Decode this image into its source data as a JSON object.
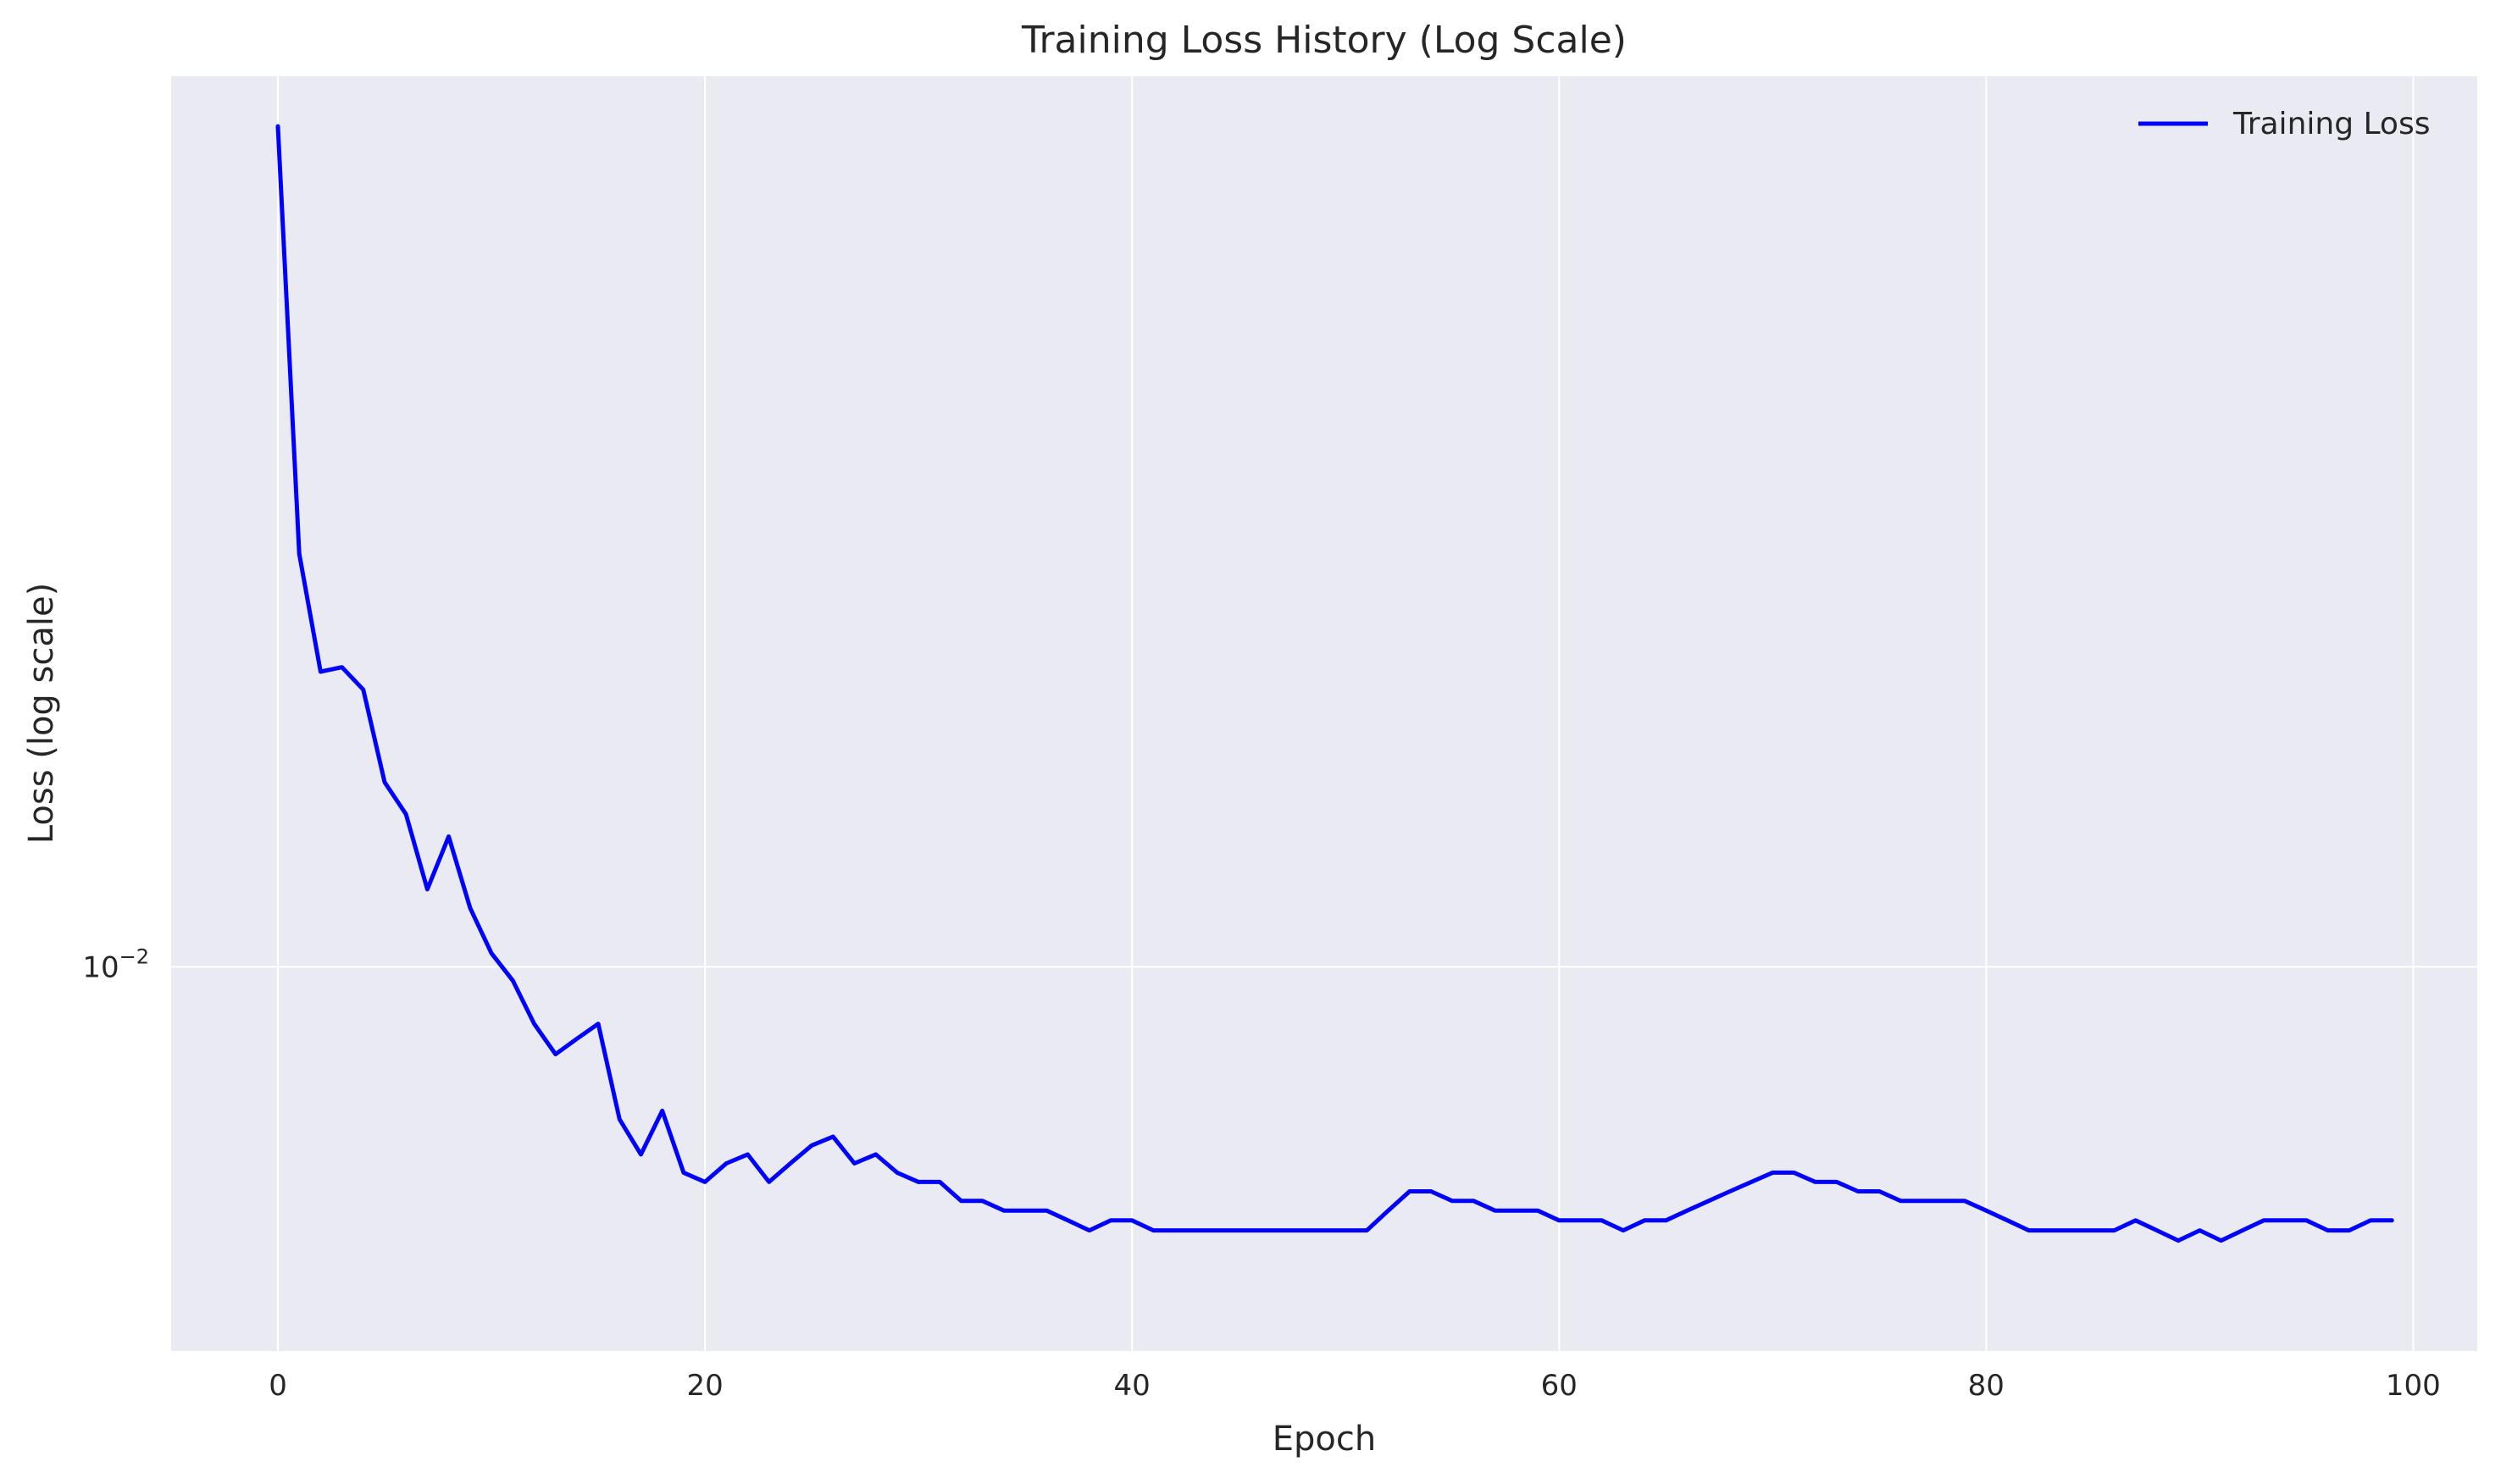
{
  "chart_data": {
    "type": "line",
    "title": "Training Loss History (Log Scale)",
    "xlabel": "Epoch",
    "ylabel": "Loss (log scale)",
    "yscale": "log",
    "xlim": [
      -5,
      103
    ],
    "ylim": [
      0.0057,
      0.0368
    ],
    "xticks": [
      0,
      20,
      40,
      60,
      80,
      100
    ],
    "yticks": [
      {
        "value": 0.01,
        "base": "10",
        "exponent": "−2"
      }
    ],
    "grid": true,
    "legend_position": "top-right",
    "colors": {
      "plot_background": "#eaeaf2",
      "grid": "#ffffff",
      "line": "#0000ff"
    },
    "series": [
      {
        "name": "Training Loss",
        "x": [
          0,
          1,
          2,
          3,
          4,
          5,
          6,
          7,
          8,
          9,
          10,
          11,
          12,
          13,
          14,
          15,
          16,
          17,
          18,
          19,
          20,
          21,
          22,
          23,
          24,
          25,
          26,
          27,
          28,
          29,
          30,
          31,
          32,
          33,
          34,
          35,
          36,
          37,
          38,
          39,
          40,
          41,
          42,
          43,
          44,
          45,
          46,
          47,
          48,
          49,
          50,
          51,
          52,
          53,
          54,
          55,
          56,
          57,
          58,
          59,
          60,
          61,
          62,
          63,
          64,
          65,
          66,
          67,
          68,
          69,
          70,
          71,
          72,
          73,
          74,
          75,
          76,
          77,
          78,
          79,
          80,
          81,
          82,
          83,
          84,
          85,
          86,
          87,
          88,
          89,
          90,
          91,
          92,
          93,
          94,
          95,
          96,
          97,
          98,
          99
        ],
        "values": [
          0.0342,
          0.0183,
          0.0154,
          0.0155,
          0.015,
          0.0131,
          0.0125,
          0.0112,
          0.0121,
          0.0109,
          0.0102,
          0.0098,
          0.0092,
          0.0088,
          0.009,
          0.0092,
          0.008,
          0.0076,
          0.0081,
          0.0074,
          0.0073,
          0.0075,
          0.0076,
          0.0073,
          0.0075,
          0.0077,
          0.0078,
          0.0075,
          0.0076,
          0.0074,
          0.0073,
          0.0073,
          0.0071,
          0.0071,
          0.007,
          0.007,
          0.007,
          0.0069,
          0.0068,
          0.0069,
          0.0069,
          0.0068,
          0.0068,
          0.0068,
          0.0068,
          0.0068,
          0.0068,
          0.0068,
          0.0068,
          0.0068,
          0.0068,
          0.0068,
          0.007,
          0.0072,
          0.0072,
          0.0071,
          0.0071,
          0.007,
          0.007,
          0.007,
          0.0069,
          0.0069,
          0.0069,
          0.0068,
          0.0069,
          0.0069,
          0.007,
          0.0071,
          0.0072,
          0.0073,
          0.0074,
          0.0074,
          0.0073,
          0.0073,
          0.0072,
          0.0072,
          0.0071,
          0.0071,
          0.0071,
          0.0071,
          0.007,
          0.0069,
          0.0068,
          0.0068,
          0.0068,
          0.0068,
          0.0068,
          0.0069,
          0.0068,
          0.0067,
          0.0068,
          0.0067,
          0.0068,
          0.0069,
          0.0069,
          0.0069,
          0.0068,
          0.0068,
          0.0069,
          0.0069
        ]
      }
    ]
  }
}
